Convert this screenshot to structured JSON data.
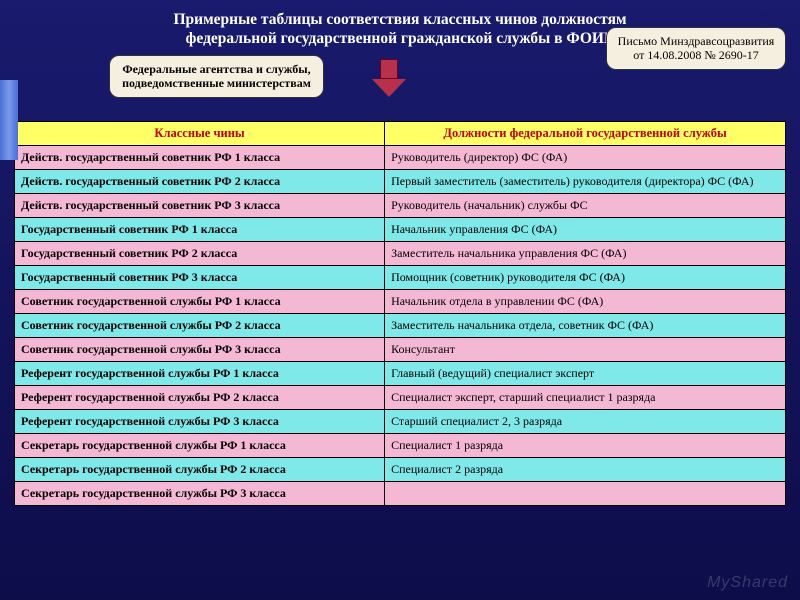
{
  "title_line1": "Примерные таблицы соответствия классных чинов должностям",
  "title_line2": "федеральной государственной гражданской службы в ФОИВ",
  "callout_left": "Федеральные агентства и службы, подведомственные министерствам",
  "callout_right": "Письмо Минздравсоцразвития от 14.08.2008 № 2690-17",
  "headers": {
    "rank": "Классные чины",
    "position": "Должности федеральной государственной службы"
  },
  "rows": [
    {
      "color": "pink",
      "rank": "Действ. государственный советник РФ 1 класса",
      "pos": "Руководитель (директор) ФС (ФА)"
    },
    {
      "color": "cyan",
      "rank": "Действ. государственный советник РФ 2 класса",
      "pos": "Первый заместитель (заместитель) руководителя (директора) ФС (ФА)"
    },
    {
      "color": "pink",
      "rank": "Действ. государственный советник РФ 3 класса",
      "pos": "Руководитель (начальник) службы ФС"
    },
    {
      "color": "cyan",
      "rank": "Государственный советник РФ 1 класса",
      "pos": "Начальник управления ФС (ФА)"
    },
    {
      "color": "pink",
      "rank": "Государственный советник РФ 2 класса",
      "pos": "Заместитель начальника управления ФС (ФА)"
    },
    {
      "color": "cyan",
      "rank": "Государственный советник РФ 3 класса",
      "pos": "Помощник (советник) руководителя ФС (ФА)"
    },
    {
      "color": "pink",
      "rank": "Советник государственной службы РФ 1 класса",
      "pos": "Начальник отдела в управлении ФС (ФА)"
    },
    {
      "color": "cyan",
      "rank": "Советник государственной службы РФ 2 класса",
      "pos": "Заместитель начальника отдела, советник ФС (ФА)"
    },
    {
      "color": "pink",
      "rank": "Советник государственной службы РФ 3 класса",
      "pos": "Консультант"
    },
    {
      "color": "cyan",
      "rank": "Референт государственной службы РФ 1 класса",
      "pos": "Главный (ведущий) специалист эксперт"
    },
    {
      "color": "pink",
      "rank": "Референт государственной службы РФ 2 класса",
      "pos": "Специалист эксперт, старший специалист 1 разряда"
    },
    {
      "color": "cyan",
      "rank": "Референт государственной службы РФ 3 класса",
      "pos": "Старший специалист 2, 3 разряда"
    },
    {
      "color": "pink",
      "rank": "Секретарь государственной службы РФ 1 класса",
      "pos": "Специалист 1 разряда"
    },
    {
      "color": "cyan",
      "rank": "Секретарь государственной службы РФ 2 класса",
      "pos": "Специалист 2 разряда"
    },
    {
      "color": "pink",
      "rank": "Секретарь государственной службы РФ 3 класса",
      "pos": ""
    }
  ],
  "colors": {
    "pink": "#f4b8d4",
    "cyan": "#7fe8e8",
    "header_bg": "#ffff66",
    "header_text": "#c00000",
    "bg_top": "#1a1a6e",
    "bg_bottom": "#0d0d4a"
  },
  "watermark": "MyShared"
}
